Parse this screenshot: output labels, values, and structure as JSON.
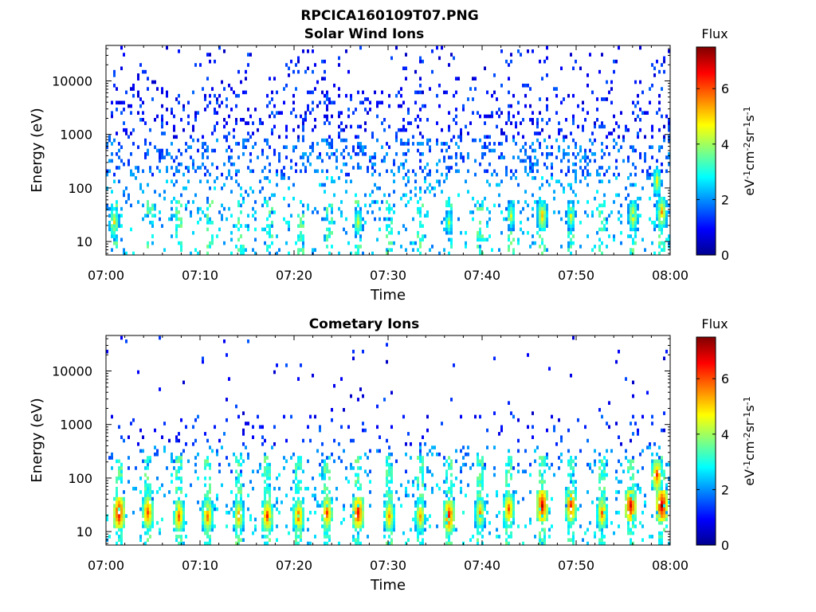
{
  "figure": {
    "title": "RPCICA160109T07.PNG"
  },
  "colors": {
    "axis": "#000000",
    "background": "#ffffff",
    "jet": [
      "#00008f",
      "#0000ff",
      "#0080ff",
      "#00ffff",
      "#80ff80",
      "#ffff00",
      "#ff8000",
      "#ff0000",
      "#800000"
    ]
  },
  "chart_data": [
    {
      "type": "heatmap",
      "title": "Solar Wind Ions",
      "xlabel": "Time",
      "ylabel": "Energy (eV)",
      "x_ticks": [
        "07:00",
        "07:10",
        "07:20",
        "07:30",
        "07:40",
        "07:50",
        "08:00"
      ],
      "xlim": [
        "07:00",
        "08:00"
      ],
      "y_scale": "log",
      "y_ticks": [
        "10",
        "100",
        "1000",
        "10000"
      ],
      "ylim": [
        5.6,
        46000
      ],
      "colorbar": {
        "title": "Flux",
        "label_parts": [
          "eV",
          "-1",
          "cm",
          "-2",
          "sr",
          "-1",
          "s",
          "-1"
        ],
        "ticks": [
          "0",
          "2",
          "4",
          "6"
        ],
        "range": [
          0,
          7.5
        ]
      },
      "sweep_minutes": [
        0.8,
        4.5,
        7.6,
        11.0,
        14.3,
        17.4,
        20.6,
        23.7,
        26.8,
        30.0,
        33.2,
        36.4,
        39.6,
        43.0,
        46.2,
        49.4,
        52.6,
        55.9,
        58.9
      ],
      "hotspots": [
        {
          "time_min": 0.8,
          "energy_ev": 22,
          "flux": 5.0
        },
        {
          "time_min": 26.8,
          "energy_ev": 22,
          "flux": 4.6
        },
        {
          "time_min": 36.4,
          "energy_ev": 20,
          "flux": 4.2
        },
        {
          "time_min": 43.0,
          "energy_ev": 28,
          "flux": 4.4
        },
        {
          "time_min": 46.2,
          "energy_ev": 28,
          "flux": 5.3
        },
        {
          "time_min": 49.4,
          "energy_ev": 30,
          "flux": 4.6
        },
        {
          "time_min": 55.9,
          "energy_ev": 28,
          "flux": 5.1
        },
        {
          "time_min": 58.9,
          "energy_ev": 35,
          "flux": 5.4
        },
        {
          "time_min": 58.6,
          "energy_ev": 120,
          "flux": 4.7
        }
      ]
    },
    {
      "type": "heatmap",
      "title": "Cometary Ions",
      "xlabel": "Time",
      "ylabel": "Energy (eV)",
      "x_ticks": [
        "07:00",
        "07:10",
        "07:20",
        "07:30",
        "07:40",
        "07:50",
        "08:00"
      ],
      "xlim": [
        "07:00",
        "08:00"
      ],
      "y_scale": "log",
      "y_ticks": [
        "10",
        "100",
        "1000",
        "10000"
      ],
      "ylim": [
        5.6,
        46000
      ],
      "colorbar": {
        "title": "Flux",
        "label_parts": [
          "eV",
          "-1",
          "cm",
          "-2",
          "sr",
          "-1",
          "s",
          "-1"
        ],
        "ticks": [
          "0",
          "2",
          "4",
          "6"
        ],
        "range": [
          0,
          7.5
        ]
      },
      "sweep_minutes": [
        1.2,
        4.3,
        7.6,
        10.7,
        14.0,
        17.1,
        20.3,
        23.5,
        26.7,
        30.0,
        33.2,
        36.3,
        39.6,
        42.8,
        46.2,
        49.4,
        52.5,
        55.8,
        58.9
      ],
      "hotspots": [
        {
          "time_min": 1.2,
          "energy_ev": 20,
          "flux": 6.9
        },
        {
          "time_min": 4.3,
          "energy_ev": 20,
          "flux": 6.2
        },
        {
          "time_min": 7.6,
          "energy_ev": 18,
          "flux": 6.0
        },
        {
          "time_min": 10.7,
          "energy_ev": 17,
          "flux": 5.9
        },
        {
          "time_min": 14.0,
          "energy_ev": 17,
          "flux": 5.6
        },
        {
          "time_min": 17.1,
          "energy_ev": 17,
          "flux": 6.2
        },
        {
          "time_min": 20.3,
          "energy_ev": 17,
          "flux": 6.0
        },
        {
          "time_min": 23.5,
          "energy_ev": 20,
          "flux": 6.1
        },
        {
          "time_min": 26.7,
          "energy_ev": 20,
          "flux": 6.7
        },
        {
          "time_min": 30.0,
          "energy_ev": 17,
          "flux": 5.7
        },
        {
          "time_min": 33.2,
          "energy_ev": 17,
          "flux": 5.5
        },
        {
          "time_min": 36.3,
          "energy_ev": 18,
          "flux": 6.6
        },
        {
          "time_min": 39.6,
          "energy_ev": 20,
          "flux": 5.5
        },
        {
          "time_min": 42.8,
          "energy_ev": 24,
          "flux": 6.0
        },
        {
          "time_min": 46.2,
          "energy_ev": 28,
          "flux": 6.9
        },
        {
          "time_min": 49.4,
          "energy_ev": 28,
          "flux": 6.5
        },
        {
          "time_min": 52.5,
          "energy_ev": 22,
          "flux": 5.8
        },
        {
          "time_min": 55.8,
          "energy_ev": 28,
          "flux": 6.9
        },
        {
          "time_min": 58.9,
          "energy_ev": 30,
          "flux": 7.2
        },
        {
          "time_min": 58.6,
          "energy_ev": 100,
          "flux": 6.1
        }
      ]
    }
  ]
}
